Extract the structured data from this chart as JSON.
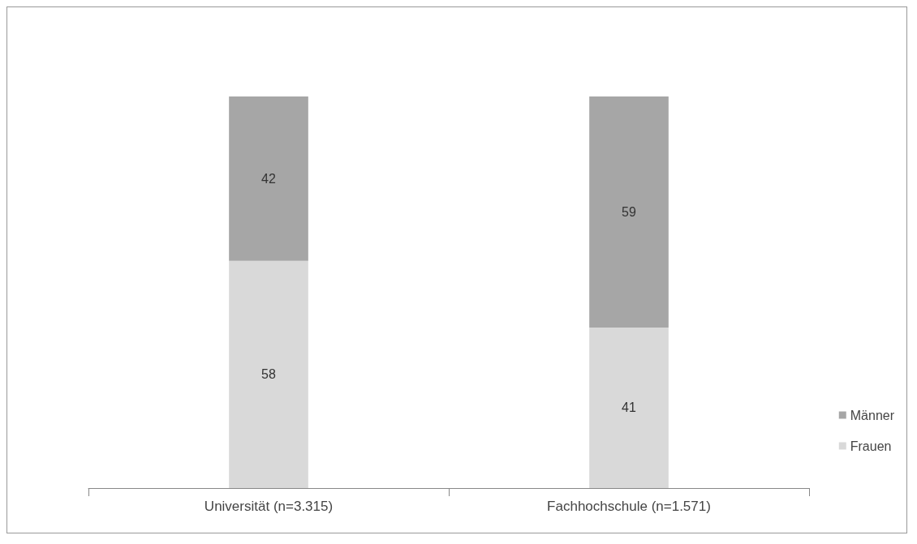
{
  "chart_data": {
    "type": "bar",
    "stacked": true,
    "categories": [
      "Universität (n=3.315)",
      "Fachhochschule (n=1.571)"
    ],
    "series": [
      {
        "name": "Frauen",
        "color": "#d9d9d9",
        "values": [
          58,
          41
        ]
      },
      {
        "name": "Männer",
        "color": "#a6a6a6",
        "values": [
          42,
          59
        ]
      }
    ],
    "data_labels": true,
    "legend": "right",
    "tick_labels": "x"
  }
}
